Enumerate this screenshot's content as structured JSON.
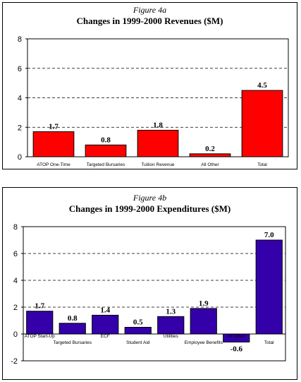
{
  "chart_data": [
    {
      "type": "bar",
      "figure_label": "Figure 4a",
      "title": "Changes in 1999-2000 Revenues ($M)",
      "categories": [
        "ATOP One-Time",
        "Targeted Bursaries",
        "Tuition Revenue",
        "All Other",
        "Total"
      ],
      "values": [
        1.7,
        0.8,
        1.8,
        0.2,
        4.5
      ],
      "data_labels": [
        "1.7",
        "0.8",
        "1.8",
        "0.2",
        "4.5"
      ],
      "yticks": [
        "0",
        "2",
        "4",
        "6",
        "8"
      ],
      "ylim": [
        0,
        8
      ],
      "grid": "dashed horizontal",
      "bar_color": "#ff0000"
    },
    {
      "type": "bar",
      "figure_label": "Figure 4b",
      "title": "Changes in 1999-2000 Expenditures ($M)",
      "categories": [
        "ATOP Start-Up",
        "Targeted Bursaries",
        "ECF",
        "Student Aid",
        "Utilities",
        "Employee Benefits",
        "All Other",
        "Total"
      ],
      "values": [
        1.7,
        0.8,
        1.4,
        0.5,
        1.3,
        1.9,
        -0.6,
        7.0
      ],
      "data_labels": [
        "1.7",
        "0.8",
        "1.4",
        "0.5",
        "1.3",
        "1.9",
        "-0.6",
        "7.0"
      ],
      "yticks": [
        "-2",
        "0",
        "2",
        "4",
        "6",
        "8"
      ],
      "ylim": [
        -2,
        8
      ],
      "grid": "dashed horizontal",
      "bar_color": "#3300aa"
    }
  ]
}
